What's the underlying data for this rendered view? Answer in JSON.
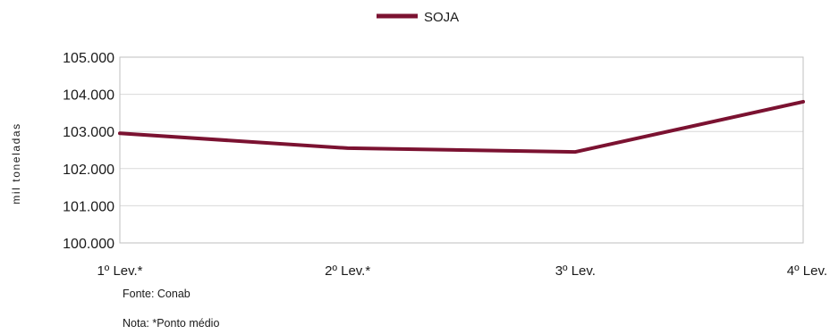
{
  "chart_data": {
    "type": "line",
    "categories": [
      "1º Lev.*",
      "2º Lev.*",
      "3º Lev.",
      "4º Lev."
    ],
    "series": [
      {
        "name": "SOJA",
        "values": [
          102.95,
          102.55,
          102.45,
          103.8
        ],
        "color": "#7b1231"
      }
    ],
    "ylabel": "mil toneladas",
    "ylim": [
      100.0,
      105.0
    ],
    "yticks": [
      "100.000",
      "101.000",
      "102.000",
      "103.000",
      "104.000",
      "105.000"
    ],
    "grid": true,
    "legend": "top-center"
  },
  "notes": {
    "source": "Fonte: Conab",
    "footnote": "Nota: *Ponto médio"
  }
}
